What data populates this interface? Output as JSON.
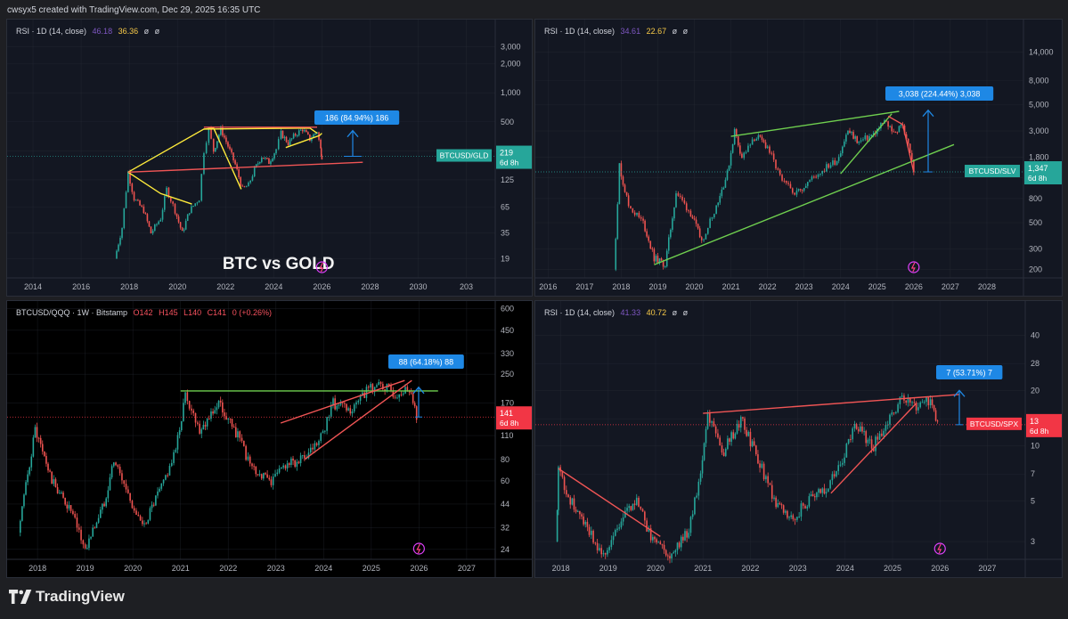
{
  "header": {
    "created_text": "cwsyx5 created with TradingView.com, Dec 29, 2025 16:35 UTC"
  },
  "footer": {
    "brand": "TradingView"
  },
  "colors": {
    "bg": "#131722",
    "bg_black": "#000000",
    "grid": "#2a2e39",
    "text": "#b2b5be",
    "up": "#26a69a",
    "down": "#ef5350",
    "blue": "#2962ff",
    "measure": "#1e88e5",
    "teal_label": "#26a69a",
    "red_label": "#f23645",
    "yellow": "#ffeb3b",
    "green_line": "#6fcf4f",
    "red_line": "#f05555"
  },
  "chart_data": [
    {
      "type": "candlestick",
      "symbol": "BTCUSD/GLD",
      "indicator": {
        "name": "RSI · 1D (14, close)",
        "v1": "46.18",
        "v2": "36.36",
        "v3": "ø",
        "v4": "ø"
      },
      "watermark": "BTC vs GOLD",
      "x_ticks": [
        "2014",
        "2016",
        "2018",
        "2020",
        "2022",
        "2024",
        "2026",
        "2028",
        "2030",
        "203"
      ],
      "y_ticks": [
        "3,000",
        "2,000",
        "1,000",
        "500",
        "250",
        "125",
        "65",
        "35",
        "19"
      ],
      "y_scale": "log",
      "last_label": "BTCUSD/GLD",
      "last_price": "219",
      "countdown": "6d 8h",
      "measure_label": "186 (84.94%) 186",
      "series_points": [
        [
          2017.4,
          19
        ],
        [
          2017.7,
          40
        ],
        [
          2017.95,
          150
        ],
        [
          2018.2,
          80
        ],
        [
          2018.6,
          60
        ],
        [
          2018.9,
          35
        ],
        [
          2019.3,
          50
        ],
        [
          2019.55,
          100
        ],
        [
          2019.9,
          60
        ],
        [
          2020.2,
          35
        ],
        [
          2020.5,
          60
        ],
        [
          2020.9,
          80
        ],
        [
          2021.1,
          250
        ],
        [
          2021.3,
          420
        ],
        [
          2021.5,
          250
        ],
        [
          2021.8,
          420
        ],
        [
          2022.1,
          280
        ],
        [
          2022.4,
          180
        ],
        [
          2022.7,
          100
        ],
        [
          2022.95,
          110
        ],
        [
          2023.2,
          160
        ],
        [
          2023.5,
          220
        ],
        [
          2023.8,
          190
        ],
        [
          2024.1,
          260
        ],
        [
          2024.3,
          380
        ],
        [
          2024.6,
          300
        ],
        [
          2024.9,
          370
        ],
        [
          2025.2,
          420
        ],
        [
          2025.5,
          330
        ],
        [
          2025.8,
          400
        ],
        [
          2025.95,
          260
        ],
        [
          2026.0,
          219
        ]
      ]
    },
    {
      "type": "candlestick",
      "symbol": "BTCUSD/SLV",
      "indicator": {
        "name": "RSI · 1D (14, close)",
        "v1": "34.61",
        "v2": "22.67",
        "v3": "ø",
        "v4": "ø"
      },
      "x_ticks": [
        "2016",
        "2017",
        "2018",
        "2019",
        "2020",
        "2021",
        "2022",
        "2023",
        "2024",
        "2025",
        "2026",
        "2027",
        "2028"
      ],
      "y_ticks": [
        "14,000",
        "8,000",
        "5,000",
        "3,000",
        "1,800",
        "1,200",
        "800",
        "500",
        "300",
        "200"
      ],
      "y_scale": "log",
      "last_label": "BTCUSD/SLV",
      "last_price": "1,347",
      "countdown": "6d 8h",
      "measure_label": "3,038 (224.44%) 3,038",
      "series_points": [
        [
          2017.8,
          200
        ],
        [
          2017.95,
          1500
        ],
        [
          2018.2,
          700
        ],
        [
          2018.6,
          500
        ],
        [
          2018.9,
          250
        ],
        [
          2019.2,
          220
        ],
        [
          2019.5,
          900
        ],
        [
          2019.9,
          600
        ],
        [
          2020.2,
          350
        ],
        [
          2020.6,
          700
        ],
        [
          2020.9,
          1300
        ],
        [
          2021.1,
          3000
        ],
        [
          2021.3,
          1800
        ],
        [
          2021.7,
          2700
        ],
        [
          2022.0,
          2200
        ],
        [
          2022.4,
          1100
        ],
        [
          2022.8,
          900
        ],
        [
          2023.1,
          1100
        ],
        [
          2023.5,
          1400
        ],
        [
          2023.9,
          1700
        ],
        [
          2024.2,
          3000
        ],
        [
          2024.5,
          2400
        ],
        [
          2024.9,
          2800
        ],
        [
          2025.2,
          3600
        ],
        [
          2025.5,
          2900
        ],
        [
          2025.7,
          3400
        ],
        [
          2025.9,
          2000
        ],
        [
          2026.0,
          1347
        ]
      ]
    },
    {
      "type": "candlestick",
      "symbol": "BTCUSD/QQQ · 1W · Bitstamp",
      "ohlc": {
        "o": "O142",
        "h": "H145",
        "l": "L140",
        "c": "C141",
        "chg": "0 (+0.26%)"
      },
      "x_ticks": [
        "2018",
        "2019",
        "2020",
        "2021",
        "2022",
        "2023",
        "2024",
        "2025",
        "2026",
        "2027"
      ],
      "y_ticks": [
        "600",
        "450",
        "330",
        "250",
        "170",
        "110",
        "80",
        "60",
        "44",
        "32",
        "24"
      ],
      "y_scale": "log",
      "last_price": "141",
      "countdown": "6d 8h",
      "measure_label": "88 (64.18%) 88",
      "series_points": [
        [
          2017.6,
          30
        ],
        [
          2017.95,
          120
        ],
        [
          2018.3,
          60
        ],
        [
          2018.7,
          40
        ],
        [
          2019.0,
          24
        ],
        [
          2019.4,
          45
        ],
        [
          2019.6,
          80
        ],
        [
          2019.9,
          50
        ],
        [
          2020.2,
          32
        ],
        [
          2020.6,
          55
        ],
        [
          2020.9,
          90
        ],
        [
          2021.1,
          190
        ],
        [
          2021.4,
          120
        ],
        [
          2021.8,
          170
        ],
        [
          2022.2,
          110
        ],
        [
          2022.5,
          70
        ],
        [
          2022.9,
          60
        ],
        [
          2023.2,
          75
        ],
        [
          2023.6,
          80
        ],
        [
          2023.9,
          100
        ],
        [
          2024.2,
          170
        ],
        [
          2024.6,
          150
        ],
        [
          2024.9,
          200
        ],
        [
          2025.2,
          220
        ],
        [
          2025.5,
          190
        ],
        [
          2025.8,
          210
        ],
        [
          2025.95,
          141
        ]
      ]
    },
    {
      "type": "candlestick",
      "symbol": "BTCUSD/SPX",
      "indicator": {
        "name": "RSI · 1D (14, close)",
        "v1": "41.33",
        "v2": "40.72",
        "v3": "ø",
        "v4": "ø"
      },
      "x_ticks": [
        "2018",
        "2019",
        "2020",
        "2021",
        "2022",
        "2023",
        "2024",
        "2025",
        "2026",
        "2027"
      ],
      "y_ticks": [
        "40",
        "28",
        "20",
        "14",
        "10",
        "7",
        "5",
        "3"
      ],
      "y_scale": "log",
      "last_label": "BTCUSD/SPX",
      "last_price": "13",
      "countdown": "6d 8h",
      "measure_label": "7 (53.71%) 7",
      "series_points": [
        [
          2017.9,
          3
        ],
        [
          2017.95,
          7.5
        ],
        [
          2018.2,
          5
        ],
        [
          2018.6,
          3.5
        ],
        [
          2018.9,
          2.5
        ],
        [
          2019.4,
          4.5
        ],
        [
          2019.6,
          5
        ],
        [
          2019.9,
          3.2
        ],
        [
          2020.3,
          2.5
        ],
        [
          2020.7,
          3.5
        ],
        [
          2020.95,
          7
        ],
        [
          2021.1,
          15
        ],
        [
          2021.4,
          9
        ],
        [
          2021.8,
          14
        ],
        [
          2022.2,
          8
        ],
        [
          2022.5,
          5
        ],
        [
          2022.9,
          4
        ],
        [
          2023.2,
          5
        ],
        [
          2023.6,
          6
        ],
        [
          2023.9,
          8
        ],
        [
          2024.2,
          13
        ],
        [
          2024.6,
          10
        ],
        [
          2024.9,
          14
        ],
        [
          2025.2,
          18
        ],
        [
          2025.5,
          16
        ],
        [
          2025.8,
          18
        ],
        [
          2025.95,
          13
        ]
      ]
    }
  ]
}
